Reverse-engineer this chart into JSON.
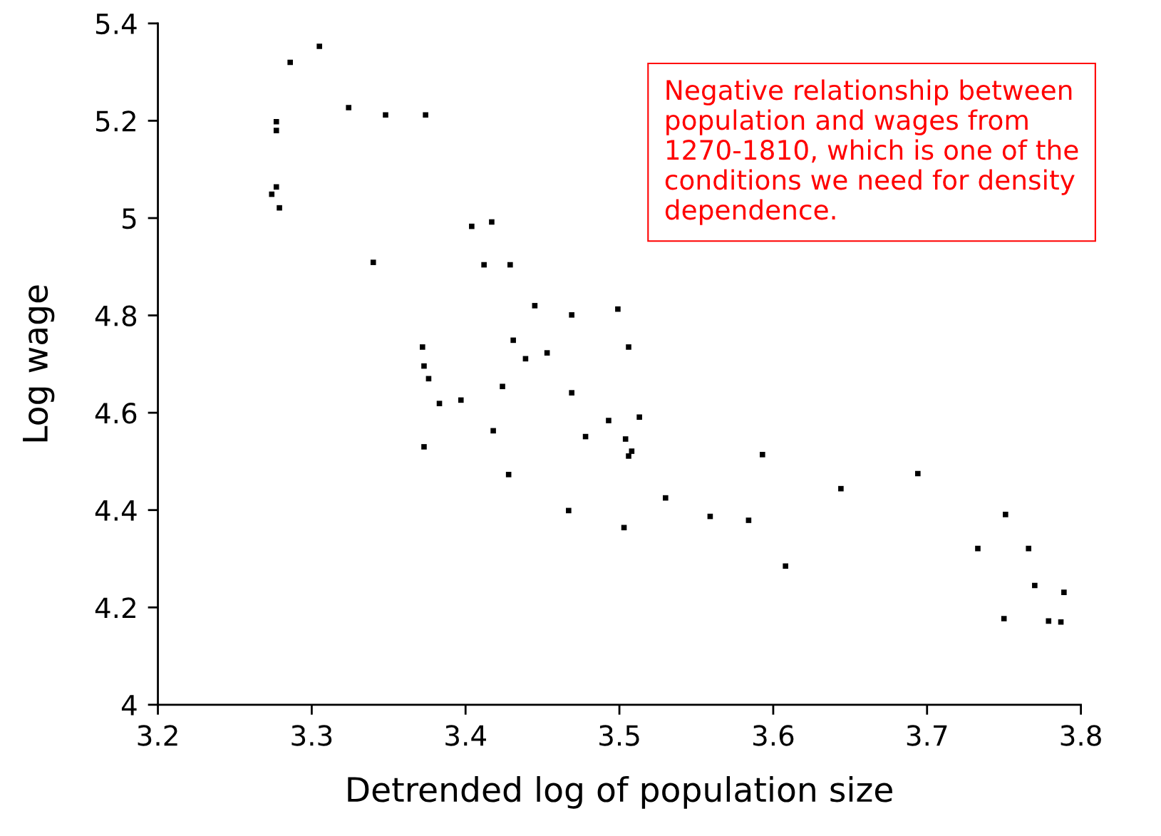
{
  "chart_data": {
    "type": "scatter",
    "xlabel": "Detrended log of population size",
    "ylabel": "Log wage",
    "x": [
      3.286,
      3.305,
      3.324,
      3.348,
      3.374,
      3.277,
      3.277,
      3.277,
      3.274,
      3.279,
      3.34,
      3.404,
      3.417,
      3.412,
      3.429,
      3.445,
      3.469,
      3.499,
      3.372,
      3.431,
      3.506,
      3.453,
      3.439,
      3.373,
      3.376,
      3.383,
      3.397,
      3.424,
      3.469,
      3.493,
      3.513,
      3.418,
      3.478,
      3.504,
      3.508,
      3.506,
      3.373,
      3.428,
      3.593,
      3.694,
      3.644,
      3.53,
      3.467,
      3.559,
      3.584,
      3.503,
      3.608,
      3.751,
      3.733,
      3.766,
      3.77,
      3.789,
      3.75,
      3.779,
      3.787
    ],
    "values": [
      5.32,
      5.353,
      5.227,
      5.212,
      5.212,
      5.198,
      5.18,
      5.064,
      5.049,
      5.021,
      4.909,
      4.983,
      4.992,
      4.904,
      4.904,
      4.82,
      4.801,
      4.813,
      4.735,
      4.749,
      4.735,
      4.723,
      4.711,
      4.696,
      4.67,
      4.619,
      4.626,
      4.654,
      4.641,
      4.584,
      4.591,
      4.563,
      4.551,
      4.546,
      4.521,
      4.511,
      4.53,
      4.473,
      4.514,
      4.475,
      4.444,
      4.425,
      4.399,
      4.387,
      4.379,
      4.364,
      4.285,
      4.391,
      4.321,
      4.321,
      4.245,
      4.231,
      4.177,
      4.172,
      4.17
    ],
    "color": "#000000",
    "marker": "square",
    "xlim": [
      3.2,
      3.8
    ],
    "xticks": [
      3.2,
      3.3,
      3.4,
      3.5,
      3.6,
      3.7,
      3.8
    ],
    "ylim": [
      4,
      5.4
    ],
    "yticks": [
      4,
      4.2,
      4.4,
      4.6,
      4.8,
      5,
      5.2,
      5.4
    ],
    "grid": false,
    "annotations": [
      "Negative relationship between population and wages from 1270-1810, which is one of the conditions we need for density dependence."
    ]
  }
}
